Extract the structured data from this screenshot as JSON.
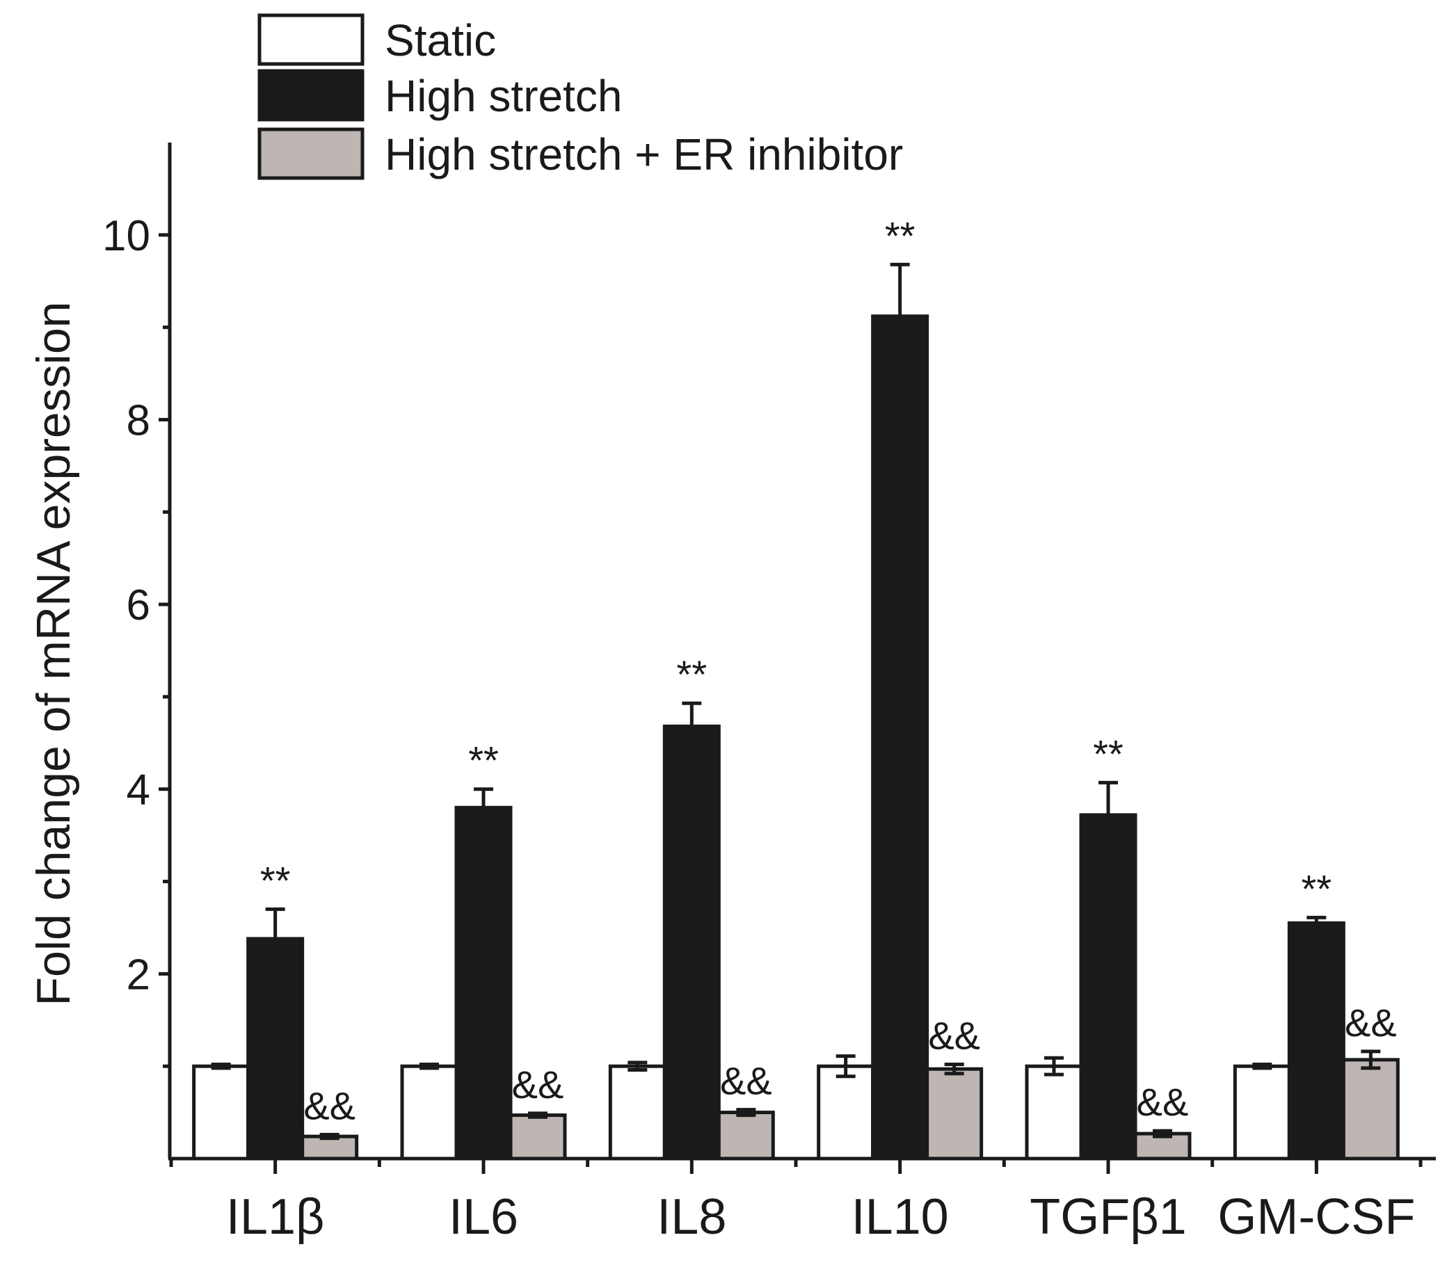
{
  "chart_data": {
    "type": "bar",
    "title": "",
    "xlabel": "",
    "ylabel": "Fold change of mRNA expression",
    "ylim": [
      0,
      11
    ],
    "yticks": [
      2,
      4,
      6,
      8,
      10
    ],
    "categories": [
      "IL1β",
      "IL6",
      "IL8",
      "IL10",
      "TGFβ1",
      "GM-CSF"
    ],
    "series": [
      {
        "name": "Static",
        "color": "#ffffff",
        "values": [
          1.0,
          1.0,
          1.0,
          1.0,
          1.0,
          1.0
        ],
        "errors": [
          0.02,
          0.02,
          0.04,
          0.11,
          0.09,
          0.02
        ],
        "annotations": [
          "",
          "",
          "",
          "",
          "",
          ""
        ]
      },
      {
        "name": "High stretch",
        "color": "#1a1a1a",
        "values": [
          2.38,
          3.8,
          4.68,
          9.12,
          3.72,
          2.55
        ],
        "errors": [
          0.32,
          0.2,
          0.25,
          0.56,
          0.35,
          0.06
        ],
        "annotations": [
          "**",
          "**",
          "**",
          "**",
          "**",
          "**"
        ]
      },
      {
        "name": "High stretch + ER inhibitor",
        "color": "#bdb6b2",
        "values": [
          0.24,
          0.47,
          0.5,
          0.97,
          0.27,
          1.07
        ],
        "errors": [
          0.02,
          0.02,
          0.03,
          0.05,
          0.03,
          0.09
        ],
        "annotations": [
          "&&",
          "&&",
          "&&",
          "&&",
          "&&",
          "&&"
        ]
      }
    ]
  }
}
